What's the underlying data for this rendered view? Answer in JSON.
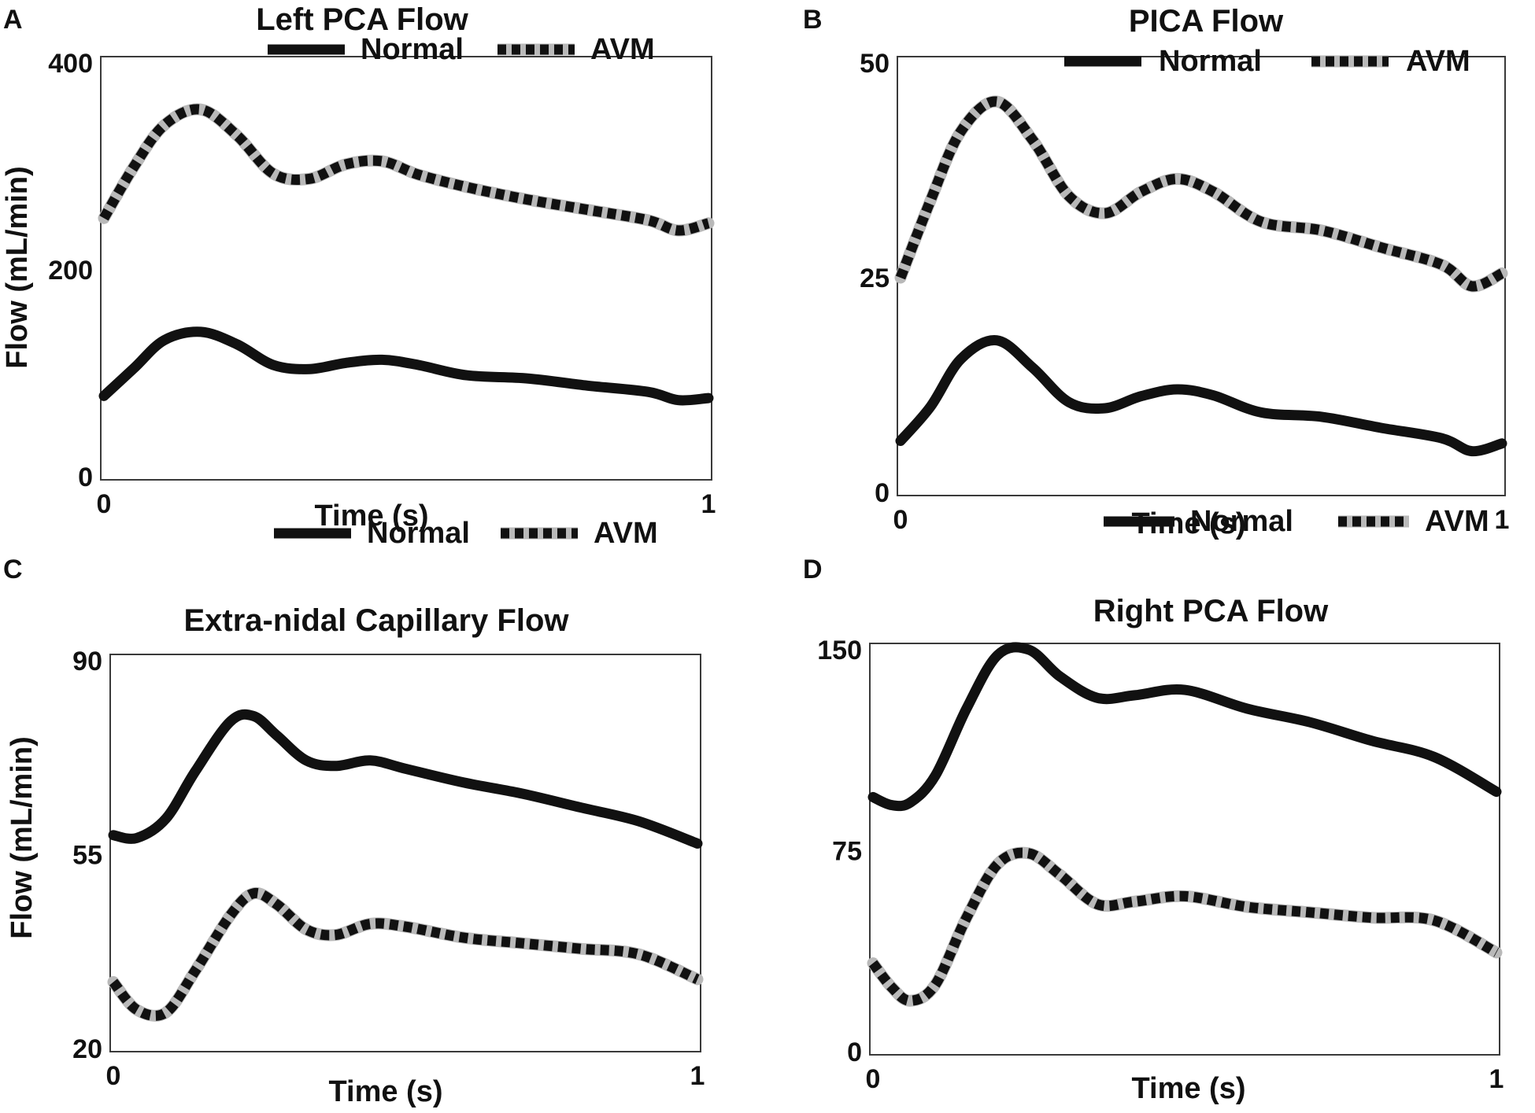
{
  "figure": {
    "ylabel_left": "Flow (mL/min)",
    "ylabel_bottom": "Flow (mL/min)"
  },
  "chart_data": [
    {
      "type": "line",
      "panel": "A",
      "title": "Left PCA Flow",
      "xlabel": "Time (s)",
      "ylabel": "Flow (mL/min)",
      "xlim": [
        0,
        1
      ],
      "ylim": [
        0,
        400
      ],
      "xticks": [
        0,
        1
      ],
      "yticks": [
        0,
        200,
        400
      ],
      "xtick_labels": [
        "0",
        "1"
      ],
      "ytick_labels": [
        "0",
        "200",
        "400"
      ],
      "legend": [
        "Normal",
        "AVM"
      ],
      "legend_position": "top-right",
      "x": [
        0,
        0.05,
        0.1,
        0.16,
        0.22,
        0.28,
        0.34,
        0.4,
        0.46,
        0.52,
        0.6,
        0.7,
        0.8,
        0.9,
        0.95,
        1.0
      ],
      "series": [
        {
          "name": "Normal",
          "style": "solid",
          "values": [
            78,
            105,
            132,
            140,
            128,
            108,
            104,
            110,
            113,
            108,
            98,
            95,
            88,
            82,
            74,
            76
          ]
        },
        {
          "name": "AVM",
          "style": "dashed",
          "values": [
            250,
            300,
            340,
            355,
            330,
            293,
            288,
            302,
            305,
            292,
            280,
            268,
            258,
            248,
            238,
            245
          ]
        }
      ]
    },
    {
      "type": "line",
      "panel": "B",
      "title": "PICA Flow",
      "xlabel": "Time (s)",
      "ylabel": "",
      "xlim": [
        0,
        1
      ],
      "ylim": [
        0,
        50
      ],
      "xticks": [
        0,
        1
      ],
      "yticks": [
        0,
        25,
        50
      ],
      "xtick_labels": [
        "0",
        "1"
      ],
      "ytick_labels": [
        "0",
        "25",
        "50"
      ],
      "legend": [
        "Normal",
        "AVM"
      ],
      "legend_position": "top-right",
      "x": [
        0,
        0.05,
        0.1,
        0.16,
        0.22,
        0.28,
        0.34,
        0.4,
        0.46,
        0.52,
        0.6,
        0.7,
        0.8,
        0.9,
        0.95,
        1.0
      ],
      "series": [
        {
          "name": "Normal",
          "style": "solid",
          "values": [
            6,
            10,
            15.5,
            17.7,
            14.5,
            10.5,
            9.8,
            11.2,
            12,
            11.3,
            9.3,
            8.8,
            7.5,
            6.3,
            4.8,
            5.7
          ]
        },
        {
          "name": "AVM",
          "style": "dashed",
          "values": [
            25,
            34,
            42,
            45.5,
            41,
            34.5,
            32.5,
            35,
            36.5,
            35,
            31.5,
            30.5,
            28.5,
            26.5,
            24,
            25.5
          ]
        }
      ]
    },
    {
      "type": "line",
      "panel": "C",
      "title": "Extra-nidal Capillary Flow",
      "xlabel": "Time (s)",
      "ylabel": "Flow (mL/min)",
      "xlim": [
        0,
        1
      ],
      "ylim": [
        20,
        90
      ],
      "xticks": [
        0,
        1
      ],
      "yticks": [
        20,
        55,
        90
      ],
      "xtick_labels": [
        "0",
        "1"
      ],
      "ytick_labels": [
        "20",
        "55",
        "90"
      ],
      "legend": [
        "Normal",
        "AVM"
      ],
      "legend_position": "top-right",
      "x": [
        0,
        0.04,
        0.09,
        0.14,
        0.2,
        0.24,
        0.28,
        0.33,
        0.38,
        0.44,
        0.5,
        0.6,
        0.7,
        0.8,
        0.9,
        1.0
      ],
      "series": [
        {
          "name": "Normal",
          "style": "solid",
          "values": [
            58.5,
            58,
            61.5,
            70,
            79,
            80,
            76.5,
            72,
            71,
            72,
            70.5,
            68,
            66,
            63.5,
            61,
            57
          ]
        },
        {
          "name": "AVM",
          "style": "dashed",
          "values": [
            32,
            27,
            26.5,
            34,
            44,
            48,
            46,
            41.5,
            40.5,
            42.5,
            42,
            40,
            39,
            38,
            37,
            32.5
          ]
        }
      ]
    },
    {
      "type": "line",
      "panel": "D",
      "title": "Right PCA Flow",
      "xlabel": "Time (s)",
      "ylabel": "",
      "xlim": [
        0,
        1
      ],
      "ylim": [
        0,
        150
      ],
      "xticks": [
        0,
        1
      ],
      "yticks": [
        0,
        75,
        150
      ],
      "xtick_labels": [
        "0",
        "1"
      ],
      "ytick_labels": [
        "0",
        "75",
        "150"
      ],
      "legend": [
        "Normal",
        "AVM"
      ],
      "legend_position": "top-right",
      "x": [
        0,
        0.03,
        0.06,
        0.1,
        0.15,
        0.2,
        0.25,
        0.3,
        0.36,
        0.42,
        0.5,
        0.6,
        0.7,
        0.8,
        0.9,
        1.0
      ],
      "series": [
        {
          "name": "Normal",
          "style": "solid",
          "values": [
            95,
            92,
            93,
            103,
            128,
            148,
            150,
            140,
            132,
            133,
            135,
            128,
            123,
            116,
            110,
            97
          ]
        },
        {
          "name": "AVM",
          "style": "dashed",
          "values": [
            33,
            24,
            19,
            25,
            50,
            70,
            74,
            66,
            55,
            56,
            58,
            54,
            52,
            50,
            49,
            37
          ]
        }
      ]
    }
  ]
}
